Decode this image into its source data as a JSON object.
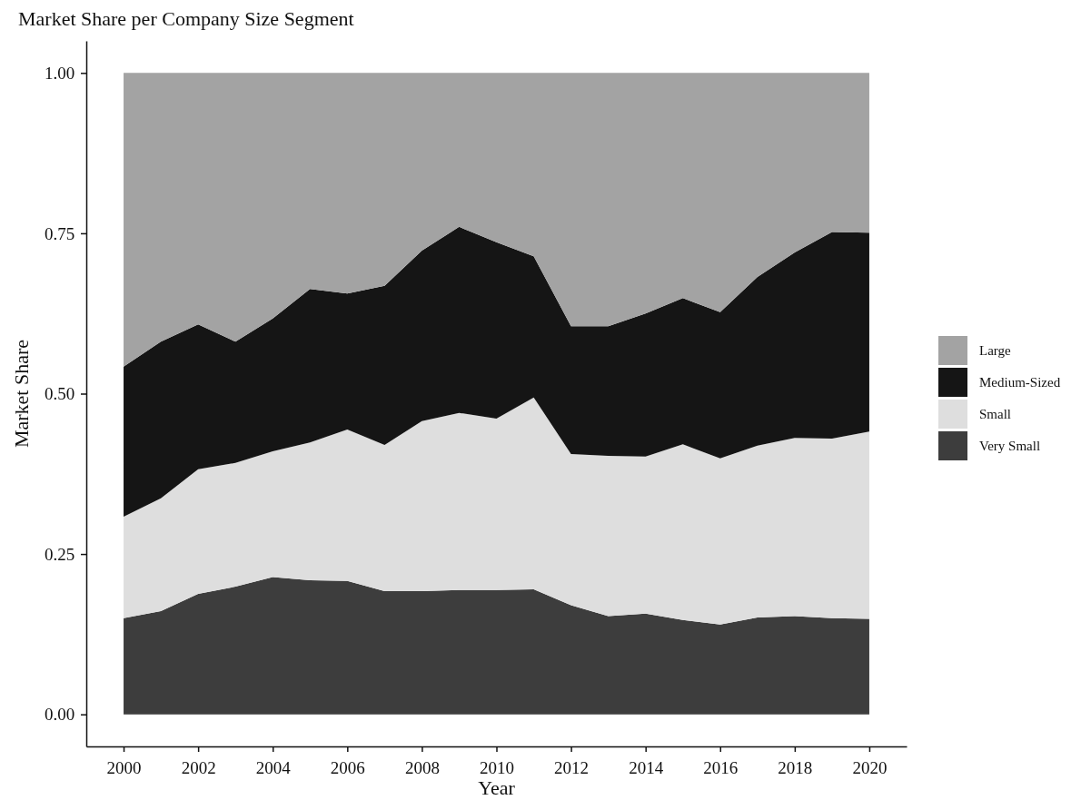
{
  "chart_data": {
    "type": "area",
    "stacked": true,
    "title": "Market Share per Company Size Segment",
    "xlabel": "Year",
    "ylabel": "Market Share",
    "x": [
      2000,
      2001,
      2002,
      2003,
      2004,
      2005,
      2006,
      2007,
      2008,
      2009,
      2010,
      2011,
      2012,
      2013,
      2014,
      2015,
      2016,
      2017,
      2018,
      2019,
      2020
    ],
    "series": [
      {
        "name": "Very Small",
        "color": "#3d3d3d",
        "values": [
          0.15,
          0.161,
          0.188,
          0.199,
          0.214,
          0.209,
          0.208,
          0.192,
          0.192,
          0.194,
          0.194,
          0.195,
          0.17,
          0.153,
          0.157,
          0.147,
          0.14,
          0.151,
          0.153,
          0.15,
          0.149
        ]
      },
      {
        "name": "Small",
        "color": "#dedede",
        "values": [
          0.158,
          0.176,
          0.194,
          0.193,
          0.196,
          0.215,
          0.236,
          0.228,
          0.265,
          0.276,
          0.267,
          0.299,
          0.236,
          0.25,
          0.245,
          0.274,
          0.259,
          0.268,
          0.278,
          0.28,
          0.292
        ]
      },
      {
        "name": "Medium-Sized",
        "color": "#151515",
        "values": [
          0.234,
          0.244,
          0.226,
          0.189,
          0.207,
          0.239,
          0.212,
          0.248,
          0.266,
          0.29,
          0.275,
          0.22,
          0.199,
          0.202,
          0.223,
          0.228,
          0.228,
          0.263,
          0.289,
          0.322,
          0.31
        ]
      },
      {
        "name": "Large",
        "color": "#a3a3a3",
        "values": [
          0.458,
          0.419,
          0.392,
          0.419,
          0.383,
          0.337,
          0.344,
          0.332,
          0.277,
          0.24,
          0.264,
          0.286,
          0.395,
          0.395,
          0.375,
          0.351,
          0.373,
          0.318,
          0.28,
          0.248,
          0.249
        ]
      }
    ],
    "xlim": [
      1999,
      2021
    ],
    "xticks": [
      2000,
      2002,
      2004,
      2006,
      2008,
      2010,
      2012,
      2014,
      2016,
      2018,
      2020
    ],
    "ylim": [
      -0.05,
      1.05
    ],
    "yticks": [
      {
        "value": 0,
        "label": "0.00"
      },
      {
        "value": 0.25,
        "label": "0.25"
      },
      {
        "value": 0.5,
        "label": "0.50"
      },
      {
        "value": 0.75,
        "label": "0.75"
      },
      {
        "value": 1,
        "label": "1.00"
      }
    ],
    "grid": false,
    "legend": "right"
  }
}
